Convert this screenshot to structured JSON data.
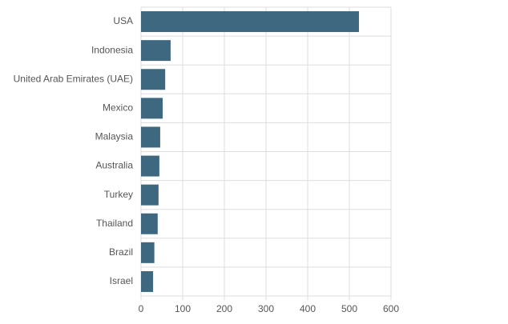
{
  "chart_data": {
    "type": "hbar",
    "categories": [
      "USA",
      "Indonesia",
      "United Arab Emirates (UAE)",
      "Mexico",
      "Malaysia",
      "Australia",
      "Turkey",
      "Thailand",
      "Brazil",
      "Israel"
    ],
    "values": [
      523,
      71,
      58,
      52,
      46,
      44,
      42,
      40,
      32,
      29
    ],
    "color": "#3e6780",
    "xlim": [
      0,
      600
    ],
    "xticks": [
      0,
      100,
      200,
      300,
      400,
      500,
      600
    ],
    "grid": true
  }
}
